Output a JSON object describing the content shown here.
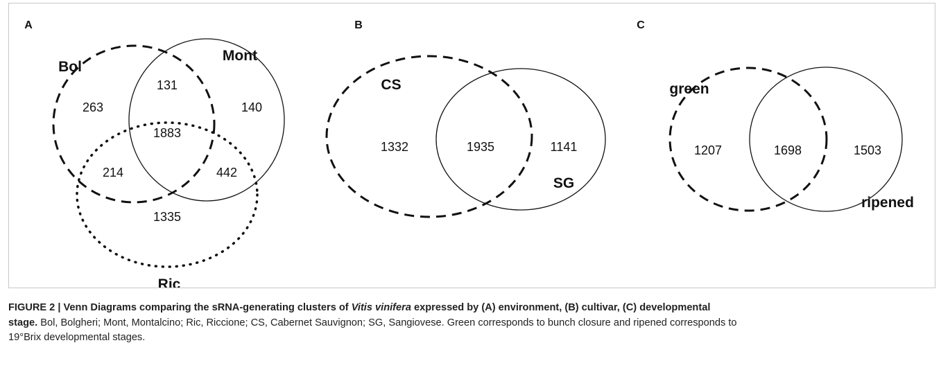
{
  "panels": [
    {
      "letter": "A",
      "sets": [
        "Bol",
        "Mont",
        "Ric"
      ],
      "regions": [
        "131",
        "263",
        "140",
        "1883",
        "214",
        "442",
        "1335"
      ]
    },
    {
      "letter": "B",
      "sets": [
        "CS",
        "SG"
      ],
      "regions": [
        "1332",
        "1935",
        "1141"
      ]
    },
    {
      "letter": "C",
      "sets": [
        "green",
        "ripened"
      ],
      "regions": [
        "1207",
        "1698",
        "1503"
      ]
    }
  ],
  "caption": {
    "lines": [
      [
        {
          "text": "FIGURE 2 | Venn Diagrams comparing the sRNA-generating clusters of ",
          "bold": true
        },
        {
          "text": "Vitis vinifera",
          "bold": true,
          "italic": true
        },
        {
          "text": " expressed by (A) environment, (B) cultivar, (C) developmental",
          "bold": true
        }
      ],
      [
        {
          "text": "stage.",
          "bold": true
        },
        {
          "text": " Bol, Bolgheri; Mont, Montalcino; Ric, Riccione; CS, Cabernet Sauvignon; SG, Sangiovese. Green corresponds to bunch closure and ripened corresponds to"
        }
      ],
      [
        {
          "text": "19°Brix developmental stages."
        }
      ]
    ]
  }
}
